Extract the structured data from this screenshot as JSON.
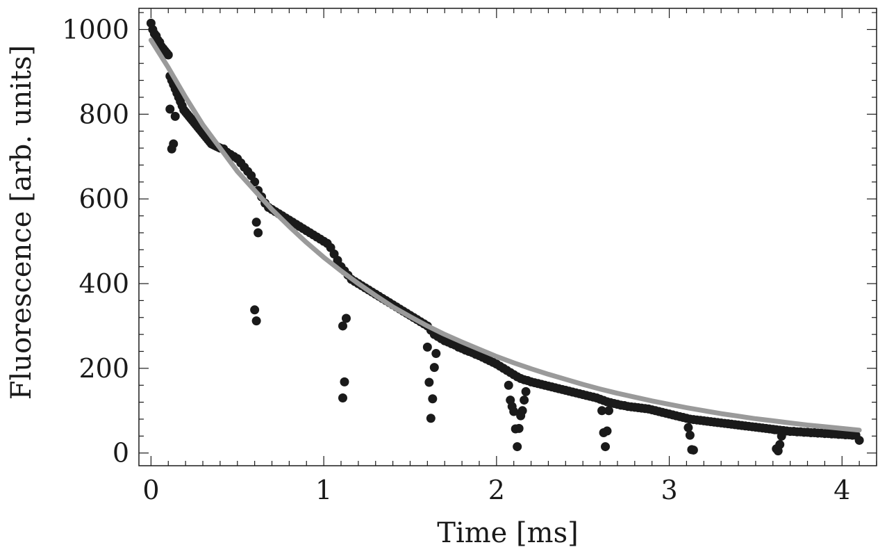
{
  "chart_data": {
    "type": "scatter",
    "xlabel": "Time [ms]",
    "ylabel": "Fluorescence [arb. units]",
    "xlim": [
      -0.07,
      4.2
    ],
    "ylim": [
      -30,
      1050
    ],
    "x_ticks": [
      0,
      1,
      2,
      3,
      4
    ],
    "y_ticks": [
      0,
      200,
      400,
      600,
      800,
      1000
    ],
    "x_tick_labels": [
      "0",
      "1",
      "2",
      "3",
      "4"
    ],
    "y_tick_labels": [
      "0",
      "200",
      "400",
      "600",
      "800",
      "1000"
    ],
    "grid": false,
    "legend": "none",
    "series": [
      {
        "kind": "points",
        "color": "#1a1a1a",
        "points": [
          [
            0.0,
            1015
          ],
          [
            0.01,
            1000
          ],
          [
            0.02,
            990
          ],
          [
            0.03,
            985
          ],
          [
            0.04,
            975
          ],
          [
            0.05,
            970
          ],
          [
            0.06,
            960
          ],
          [
            0.07,
            955
          ],
          [
            0.08,
            950
          ],
          [
            0.09,
            945
          ],
          [
            0.1,
            940
          ],
          [
            0.11,
            890
          ],
          [
            0.12,
            880
          ],
          [
            0.13,
            870
          ],
          [
            0.14,
            860
          ],
          [
            0.15,
            850
          ],
          [
            0.16,
            840
          ],
          [
            0.17,
            830
          ],
          [
            0.18,
            820
          ],
          [
            0.19,
            810
          ],
          [
            0.2,
            805
          ],
          [
            0.21,
            800
          ],
          [
            0.22,
            795
          ],
          [
            0.23,
            790
          ],
          [
            0.24,
            785
          ],
          [
            0.25,
            780
          ],
          [
            0.26,
            775
          ],
          [
            0.27,
            770
          ],
          [
            0.28,
            765
          ],
          [
            0.29,
            760
          ],
          [
            0.3,
            755
          ],
          [
            0.31,
            750
          ],
          [
            0.32,
            745
          ],
          [
            0.33,
            740
          ],
          [
            0.34,
            735
          ],
          [
            0.35,
            730
          ],
          [
            0.36,
            728
          ],
          [
            0.37,
            726
          ],
          [
            0.38,
            724
          ],
          [
            0.39,
            722
          ],
          [
            0.4,
            720
          ],
          [
            0.42,
            718
          ],
          [
            0.44,
            710
          ],
          [
            0.46,
            705
          ],
          [
            0.48,
            700
          ],
          [
            0.5,
            695
          ],
          [
            0.52,
            685
          ],
          [
            0.54,
            675
          ],
          [
            0.56,
            665
          ],
          [
            0.58,
            655
          ],
          [
            0.6,
            640
          ],
          [
            0.62,
            620
          ],
          [
            0.64,
            605
          ],
          [
            0.66,
            590
          ],
          [
            0.68,
            580
          ],
          [
            0.7,
            575
          ],
          [
            0.72,
            570
          ],
          [
            0.74,
            565
          ],
          [
            0.76,
            560
          ],
          [
            0.78,
            555
          ],
          [
            0.8,
            550
          ],
          [
            0.82,
            545
          ],
          [
            0.84,
            540
          ],
          [
            0.86,
            535
          ],
          [
            0.88,
            530
          ],
          [
            0.9,
            525
          ],
          [
            0.92,
            520
          ],
          [
            0.94,
            515
          ],
          [
            0.96,
            510
          ],
          [
            0.98,
            505
          ],
          [
            1.0,
            500
          ],
          [
            1.02,
            495
          ],
          [
            1.04,
            485
          ],
          [
            1.06,
            470
          ],
          [
            1.08,
            455
          ],
          [
            1.1,
            440
          ],
          [
            1.12,
            430
          ],
          [
            1.14,
            420
          ],
          [
            1.16,
            410
          ],
          [
            1.18,
            405
          ],
          [
            1.2,
            400
          ],
          [
            1.22,
            395
          ],
          [
            1.24,
            390
          ],
          [
            1.26,
            385
          ],
          [
            1.28,
            380
          ],
          [
            1.3,
            375
          ],
          [
            1.32,
            370
          ],
          [
            1.34,
            365
          ],
          [
            1.36,
            360
          ],
          [
            1.38,
            355
          ],
          [
            1.4,
            350
          ],
          [
            1.42,
            345
          ],
          [
            1.44,
            340
          ],
          [
            1.46,
            335
          ],
          [
            1.48,
            330
          ],
          [
            1.5,
            325
          ],
          [
            1.52,
            320
          ],
          [
            1.54,
            315
          ],
          [
            1.56,
            310
          ],
          [
            1.58,
            305
          ],
          [
            1.6,
            300
          ],
          [
            1.62,
            290
          ],
          [
            1.64,
            280
          ],
          [
            1.66,
            275
          ],
          [
            1.68,
            270
          ],
          [
            1.7,
            265
          ],
          [
            1.72,
            262
          ],
          [
            1.74,
            258
          ],
          [
            1.76,
            255
          ],
          [
            1.78,
            250
          ],
          [
            1.8,
            247
          ],
          [
            1.82,
            243
          ],
          [
            1.84,
            240
          ],
          [
            1.86,
            237
          ],
          [
            1.88,
            233
          ],
          [
            1.9,
            230
          ],
          [
            1.92,
            226
          ],
          [
            1.94,
            222
          ],
          [
            1.96,
            218
          ],
          [
            1.98,
            214
          ],
          [
            2.0,
            210
          ],
          [
            2.02,
            205
          ],
          [
            2.04,
            200
          ],
          [
            2.06,
            195
          ],
          [
            2.08,
            190
          ],
          [
            2.1,
            185
          ],
          [
            2.12,
            180
          ],
          [
            2.14,
            176
          ],
          [
            2.16,
            173
          ],
          [
            2.18,
            171
          ],
          [
            2.2,
            168
          ],
          [
            2.22,
            166
          ],
          [
            2.24,
            164
          ],
          [
            2.26,
            162
          ],
          [
            2.28,
            160
          ],
          [
            2.3,
            158
          ],
          [
            2.32,
            156
          ],
          [
            2.34,
            154
          ],
          [
            2.36,
            152
          ],
          [
            2.38,
            150
          ],
          [
            2.4,
            148
          ],
          [
            2.42,
            146
          ],
          [
            2.44,
            144
          ],
          [
            2.46,
            142
          ],
          [
            2.48,
            140
          ],
          [
            2.5,
            138
          ],
          [
            2.52,
            136
          ],
          [
            2.54,
            134
          ],
          [
            2.56,
            132
          ],
          [
            2.58,
            130
          ],
          [
            2.6,
            127
          ],
          [
            2.62,
            124
          ],
          [
            2.64,
            121
          ],
          [
            2.66,
            119
          ],
          [
            2.68,
            117
          ],
          [
            2.7,
            115
          ],
          [
            2.72,
            113
          ],
          [
            2.74,
            112
          ],
          [
            2.76,
            110
          ],
          [
            2.78,
            109
          ],
          [
            2.8,
            108
          ],
          [
            2.82,
            107
          ],
          [
            2.84,
            106
          ],
          [
            2.86,
            105
          ],
          [
            2.88,
            104
          ],
          [
            2.9,
            102
          ],
          [
            2.92,
            100
          ],
          [
            2.94,
            98
          ],
          [
            2.96,
            96
          ],
          [
            2.98,
            94
          ],
          [
            3.0,
            92
          ],
          [
            3.02,
            90
          ],
          [
            3.04,
            88
          ],
          [
            3.06,
            86
          ],
          [
            3.08,
            84
          ],
          [
            3.1,
            82
          ],
          [
            3.12,
            80
          ],
          [
            3.14,
            79
          ],
          [
            3.16,
            78
          ],
          [
            3.18,
            77
          ],
          [
            3.2,
            76
          ],
          [
            3.22,
            75
          ],
          [
            3.24,
            74
          ],
          [
            3.26,
            73
          ],
          [
            3.28,
            72
          ],
          [
            3.3,
            71
          ],
          [
            3.32,
            70
          ],
          [
            3.34,
            69
          ],
          [
            3.36,
            68
          ],
          [
            3.38,
            67
          ],
          [
            3.4,
            66
          ],
          [
            3.42,
            65
          ],
          [
            3.44,
            64
          ],
          [
            3.46,
            63
          ],
          [
            3.48,
            62
          ],
          [
            3.5,
            61
          ],
          [
            3.52,
            60
          ],
          [
            3.54,
            59
          ],
          [
            3.56,
            58
          ],
          [
            3.58,
            57
          ],
          [
            3.6,
            56
          ],
          [
            3.62,
            55
          ],
          [
            3.64,
            54
          ],
          [
            3.66,
            53
          ],
          [
            3.68,
            52
          ],
          [
            3.7,
            51
          ],
          [
            3.72,
            51
          ],
          [
            3.74,
            50
          ],
          [
            3.76,
            50
          ],
          [
            3.78,
            49
          ],
          [
            3.8,
            49
          ],
          [
            3.82,
            48
          ],
          [
            3.84,
            48
          ],
          [
            3.86,
            47
          ],
          [
            3.88,
            47
          ],
          [
            3.9,
            46
          ],
          [
            3.92,
            46
          ],
          [
            3.94,
            45
          ],
          [
            3.96,
            45
          ],
          [
            3.98,
            44
          ],
          [
            4.0,
            44
          ],
          [
            4.02,
            43
          ],
          [
            4.04,
            43
          ],
          [
            4.06,
            42
          ],
          [
            4.08,
            42
          ],
          [
            4.1,
            30
          ],
          [
            0.13,
            730
          ],
          [
            0.12,
            718
          ],
          [
            0.14,
            795
          ],
          [
            0.11,
            812
          ],
          [
            0.61,
            545
          ],
          [
            0.62,
            520
          ],
          [
            0.6,
            338
          ],
          [
            0.61,
            312
          ],
          [
            1.11,
            300
          ],
          [
            1.12,
            168
          ],
          [
            1.11,
            130
          ],
          [
            1.13,
            318
          ],
          [
            1.6,
            250
          ],
          [
            1.61,
            167
          ],
          [
            1.62,
            82
          ],
          [
            1.63,
            128
          ],
          [
            1.64,
            202
          ],
          [
            1.65,
            235
          ],
          [
            2.07,
            160
          ],
          [
            2.08,
            125
          ],
          [
            2.09,
            110
          ],
          [
            2.1,
            98
          ],
          [
            2.11,
            57
          ],
          [
            2.12,
            15
          ],
          [
            2.13,
            58
          ],
          [
            2.14,
            88
          ],
          [
            2.15,
            100
          ],
          [
            2.16,
            125
          ],
          [
            2.17,
            145
          ],
          [
            2.61,
            100
          ],
          [
            2.62,
            48
          ],
          [
            2.63,
            15
          ],
          [
            2.64,
            52
          ],
          [
            2.65,
            100
          ],
          [
            3.11,
            60
          ],
          [
            3.12,
            42
          ],
          [
            3.13,
            8
          ],
          [
            3.14,
            7
          ],
          [
            3.61,
            55
          ],
          [
            3.62,
            10
          ],
          [
            3.63,
            5
          ],
          [
            3.64,
            20
          ],
          [
            3.65,
            40
          ]
        ]
      },
      {
        "kind": "fit-line",
        "color": "#9a9a9a",
        "x": [
          0.0,
          0.1,
          0.2,
          0.3,
          0.4,
          0.5,
          0.6,
          0.7,
          0.8,
          0.9,
          1.0,
          1.1,
          1.2,
          1.3,
          1.4,
          1.5,
          1.6,
          1.7,
          1.8,
          1.9,
          2.0,
          2.1,
          2.2,
          2.3,
          2.4,
          2.5,
          2.6,
          2.7,
          2.8,
          2.9,
          3.0,
          3.1,
          3.2,
          3.3,
          3.4,
          3.5,
          3.6,
          3.7,
          3.8,
          3.9,
          4.0,
          4.1
        ],
        "y": [
          975,
          910,
          840,
          775,
          720,
          665,
          620,
          575,
          535,
          497,
          462,
          430,
          400,
          372,
          345,
          322,
          300,
          280,
          262,
          245,
          228,
          213,
          199,
          186,
          174,
          162,
          151,
          141,
          132,
          123,
          115,
          107,
          100,
          93,
          87,
          81,
          76,
          71,
          66,
          62,
          58,
          54
        ]
      }
    ]
  }
}
